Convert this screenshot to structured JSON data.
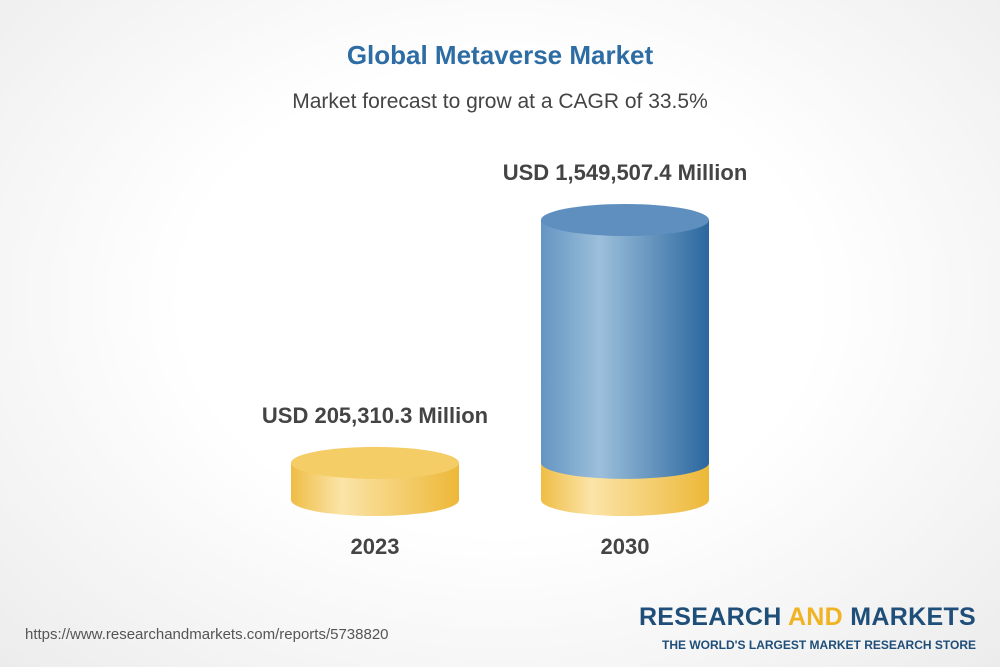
{
  "chart_data": {
    "type": "cylinder-bar",
    "title": "Global Metaverse Market",
    "subtitle": "Market forecast to grow at a CAGR of 33.5%",
    "categories": [
      "2023",
      "2030"
    ],
    "values": [
      205310.3,
      1549507.4
    ],
    "value_labels": [
      "USD 205,310.3 Million",
      "USD 1,549,507.4 Million"
    ]
  },
  "footer": {
    "url": "https://www.researchandmarkets.com/reports/5738820",
    "brand": [
      "RESEARCH ",
      "AND",
      " MARKETS"
    ],
    "tagline": "THE WORLD'S LARGEST MARKET RESEARCH STORE"
  }
}
